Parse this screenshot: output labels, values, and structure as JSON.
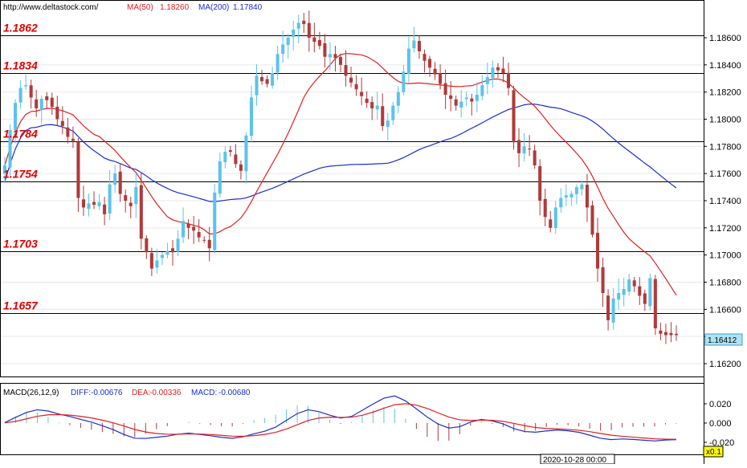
{
  "header": {
    "source_url": "http://www.deltastock.com/",
    "ma50_label": "MA(50)",
    "ma50_value": "1.18260",
    "ma200_label": "MA(200)",
    "ma200_value": "1.17840"
  },
  "macd_header": {
    "title": "MACD(26,12,9)",
    "diff_label": "DIFF:",
    "diff_value": "-0.00676",
    "dea_label": "DEA:",
    "dea_value": "-0.00336",
    "macd_label": "MACD:",
    "macd_value": "-0.00680"
  },
  "footer": {
    "timestamp": "2020-10-28 00:00",
    "zoom": "x0.1"
  },
  "colors": {
    "up_candle": "#5bc4e8",
    "down_candle": "#b03a3a",
    "ma50": "#e02020",
    "ma200": "#1a2ed0",
    "level_text": "#e00000",
    "diff_line": "#1a2ed0",
    "dea_line": "#e02020",
    "price_tag": "#aee3f5"
  },
  "chart_data": [
    {
      "type": "candlestick",
      "instrument": "",
      "ylim": [
        1.6185,
        1.1905
      ],
      "y_ticks": [
        "1.18600",
        "1.18400",
        "1.18200",
        "1.18000",
        "1.17800",
        "1.17600",
        "1.17400",
        "1.17200",
        "1.17000",
        "1.16800",
        "1.16600",
        "1.16400",
        "1.16200"
      ],
      "current_price": "1.16412",
      "levels": [
        "1.1862",
        "1.1834",
        "1.1784",
        "1.1754",
        "1.1703",
        "1.1657"
      ],
      "close": [
        1.1766,
        1.1792,
        1.1812,
        1.1823,
        1.1825,
        1.1816,
        1.1808,
        1.1815,
        1.1814,
        1.1809,
        1.18,
        1.1795,
        1.1787,
        1.1784,
        1.1742,
        1.1735,
        1.1738,
        1.1737,
        1.1739,
        1.173,
        1.1752,
        1.176,
        1.1745,
        1.174,
        1.1736,
        1.175,
        1.1712,
        1.1702,
        1.169,
        1.1696,
        1.17,
        1.1703,
        1.1702,
        1.1712,
        1.1725,
        1.172,
        1.1718,
        1.1713,
        1.1711,
        1.1705,
        1.1746,
        1.1769,
        1.1776,
        1.1776,
        1.1767,
        1.1762,
        1.1788,
        1.1816,
        1.1832,
        1.1828,
        1.1826,
        1.1834,
        1.1848,
        1.1855,
        1.186,
        1.1866,
        1.1871,
        1.187,
        1.186,
        1.1857,
        1.1854,
        1.1846,
        1.1848,
        1.1845,
        1.184,
        1.1832,
        1.1827,
        1.1822,
        1.1817,
        1.1812,
        1.1808,
        1.181,
        1.1795,
        1.1799,
        1.181,
        1.182,
        1.1835,
        1.1852,
        1.1858,
        1.185,
        1.1843,
        1.1838,
        1.1833,
        1.1826,
        1.1818,
        1.1815,
        1.181,
        1.1813,
        1.1816,
        1.1813,
        1.1818,
        1.1825,
        1.1831,
        1.1838,
        1.1836,
        1.1834,
        1.1823,
        1.1783,
        1.1775,
        1.178,
        1.1778,
        1.1766,
        1.174,
        1.1728,
        1.172,
        1.1735,
        1.1742,
        1.1744,
        1.1745,
        1.175,
        1.1752,
        1.1735,
        1.1715,
        1.169,
        1.1672,
        1.1652,
        1.1668,
        1.1672,
        1.1675,
        1.1682,
        1.1677,
        1.167,
        1.1664,
        1.1683,
        1.1646,
        1.1642,
        1.1641,
        1.1641,
        1.1641
      ]
    },
    {
      "type": "macd",
      "title": "MACD(26,12,9)",
      "ylim": [
        -0.028,
        0.028
      ],
      "y_ticks": [
        "0.020",
        "0.000",
        "-0.020"
      ],
      "diff": [
        0.0005,
        0.006,
        0.011,
        0.0138,
        0.0125,
        0.0093,
        0.0068,
        0.0038,
        0.001,
        -0.0028,
        -0.0068,
        -0.0118,
        -0.0158,
        -0.016,
        -0.0148,
        -0.0136,
        -0.0115,
        -0.0105,
        -0.0118,
        -0.0132,
        -0.0148,
        -0.0158,
        -0.0142,
        -0.0112,
        -0.0085,
        -0.0042,
        0.0028,
        0.0098,
        0.0138,
        0.0118,
        0.0082,
        0.0052,
        0.0068,
        0.0132,
        0.0198,
        0.0258,
        0.0282,
        0.023,
        0.0148,
        0.0062,
        -0.001,
        -0.0052,
        -0.0038,
        0.001,
        0.0038,
        0.0022,
        -0.0008,
        -0.0058,
        -0.0088,
        -0.0095,
        -0.0082,
        -0.0072,
        -0.008,
        -0.0096,
        -0.0126,
        -0.0158,
        -0.0172,
        -0.0165,
        -0.017,
        -0.0178,
        -0.0186,
        -0.0176,
        -0.0172
      ]
    }
  ]
}
